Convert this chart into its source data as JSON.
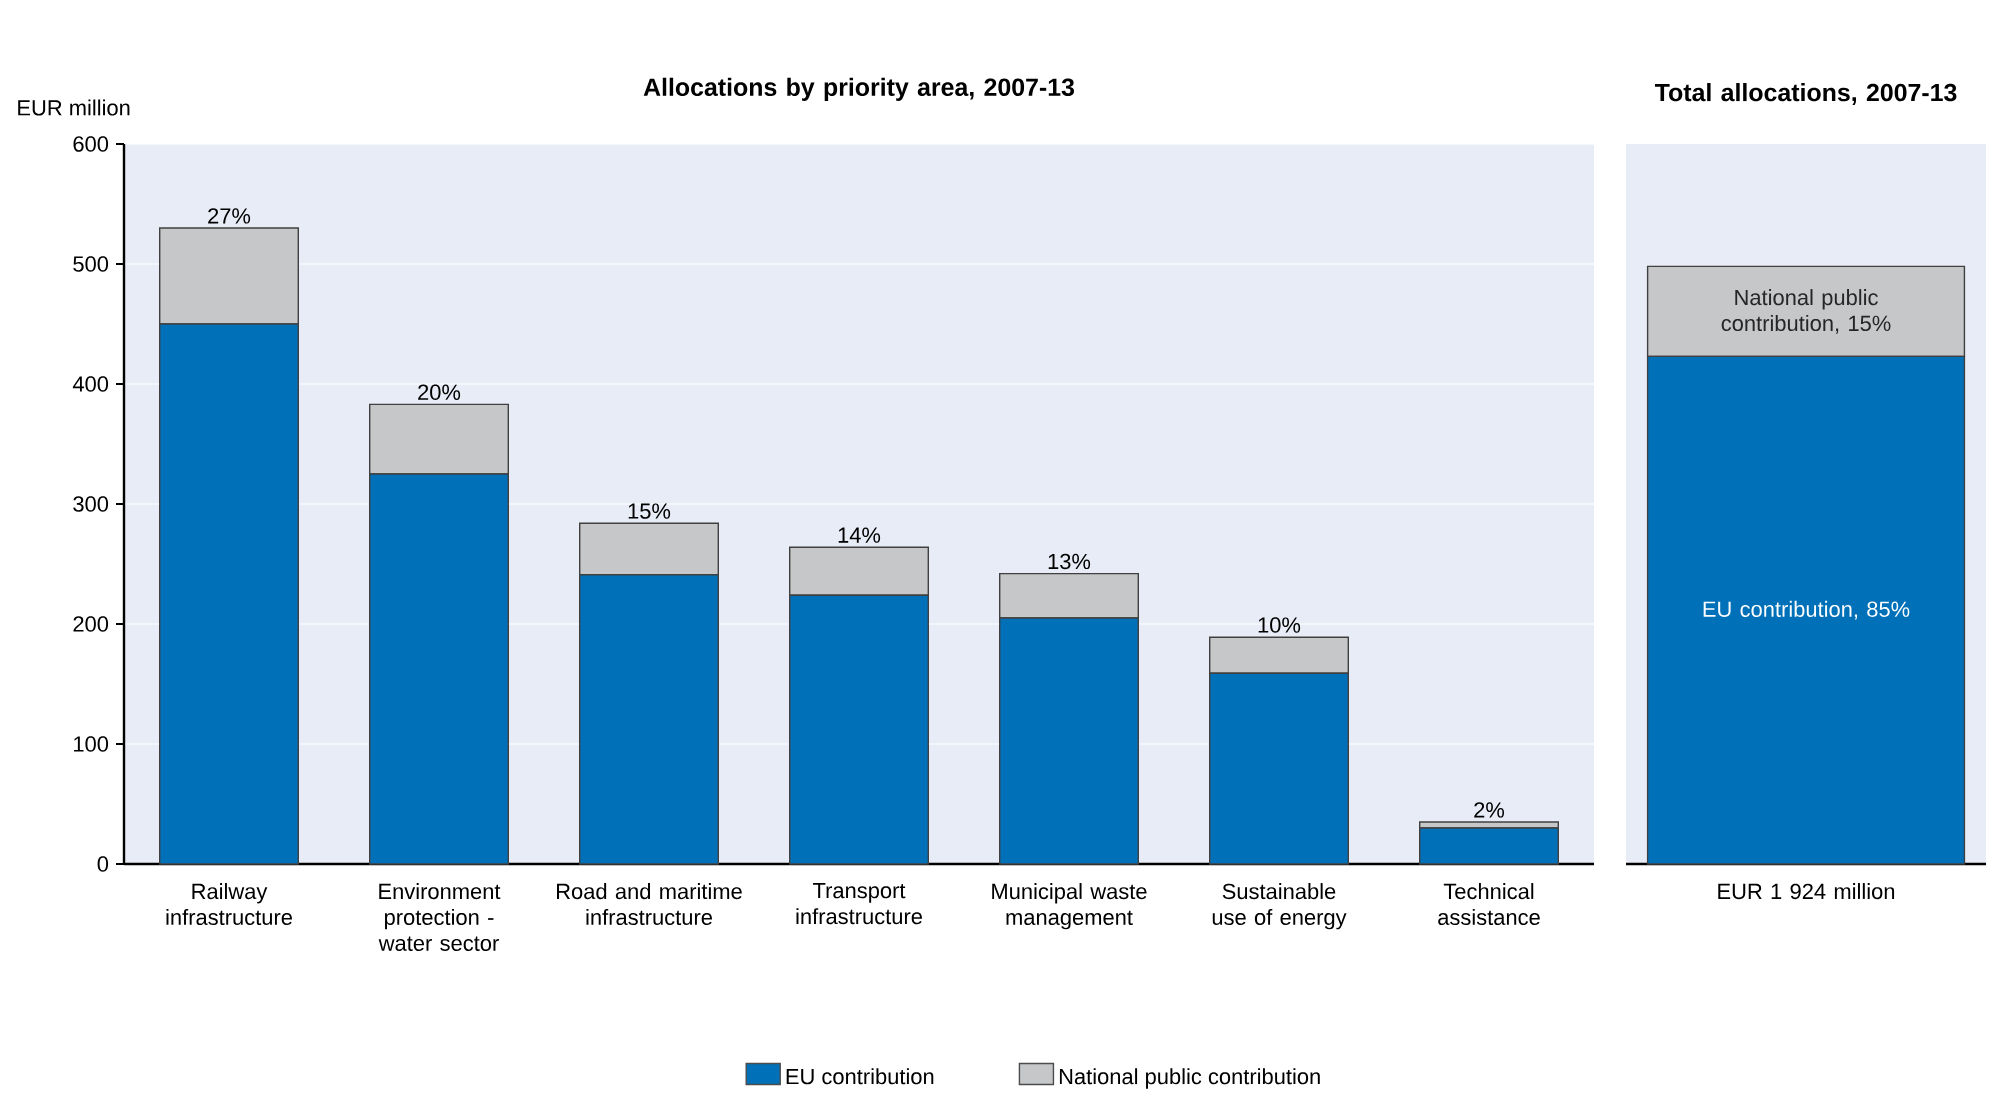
{
  "chart_data": [
    {
      "type": "bar",
      "title": "Allocations by priority area, 2007-13",
      "ylabel": "EUR million",
      "categories": [
        "Railway infrastructure",
        "Environment protection - water sector",
        "Road and maritime infrastructure",
        "Transport infrastructure",
        "Municipal waste management",
        "Sustainable use of energy",
        "Technical assistance"
      ],
      "series": [
        {
          "name": "EU contribution",
          "color": "#0070b8",
          "values": [
            450,
            325,
            241,
            224,
            205,
            159,
            30
          ]
        },
        {
          "name": "National public contribution",
          "color": "#c6c7c9",
          "values": [
            80,
            58,
            43,
            40,
            37,
            30,
            5
          ]
        }
      ],
      "stacked": true,
      "ylim": [
        0,
        600
      ],
      "yticks": [
        0,
        100,
        200,
        300,
        400,
        500,
        600
      ],
      "grid": "y",
      "legend": "bottom",
      "annotations": [
        {
          "text": "27%",
          "x": "Railway infrastructure",
          "y": 530
        },
        {
          "text": "20%",
          "x": "Environment protection - water sector",
          "y": 383
        },
        {
          "text": "15%",
          "x": "Road and maritime infrastructure",
          "y": 284
        },
        {
          "text": "14%",
          "x": "Transport infrastructure",
          "y": 264
        },
        {
          "text": "13%",
          "x": "Municipal waste management",
          "y": 242
        },
        {
          "text": "10%",
          "x": "Sustainable use of energy",
          "y": 189
        },
        {
          "text": "2%",
          "x": "Technical assistance",
          "y": 35
        }
      ]
    },
    {
      "type": "bar",
      "title": "Total allocations, 2007-13",
      "categories": [
        "EUR 1 924 million"
      ],
      "series": [
        {
          "color": "#0070b8",
          "values": [
            423
          ]
        },
        {
          "color": "#c6c7c9",
          "values": [
            75
          ]
        }
      ],
      "stacked": true,
      "ylim": [
        0,
        600
      ],
      "tick_labels": "x",
      "grid": "y",
      "annotations": [
        "EU contribution, 85%",
        "National public contribution, 15%"
      ]
    }
  ]
}
